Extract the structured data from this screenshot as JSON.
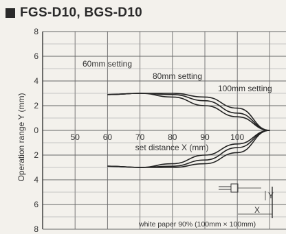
{
  "title": "FGS-D10, BGS-D10",
  "chart_data": {
    "type": "line",
    "title": "FGS-D10, BGS-D10",
    "xlabel": "set distance X (mm)",
    "ylabel": "Operation range Y (mm)",
    "xlim": [
      40,
      115
    ],
    "ylim": [
      -8,
      8
    ],
    "x_ticks": [
      "50",
      "60",
      "70",
      "80",
      "90",
      "100"
    ],
    "y_ticks": [
      "8",
      "6",
      "4",
      "2",
      "0",
      "2",
      "4",
      "6",
      "8"
    ],
    "grid": true,
    "series": [
      {
        "name": "60mm setting",
        "x": [
          60,
          70,
          80,
          90,
          100,
          110
        ],
        "y": [
          2.9,
          3.0,
          2.7,
          2.0,
          1.1,
          0
        ]
      },
      {
        "name": "80mm setting",
        "x": [
          60,
          70,
          80,
          90,
          100,
          110
        ],
        "y": [
          2.9,
          3.0,
          2.9,
          2.4,
          1.4,
          0
        ]
      },
      {
        "name": "100mm setting",
        "x": [
          60,
          70,
          80,
          90,
          100,
          110
        ],
        "y": [
          2.9,
          3.0,
          3.0,
          2.7,
          1.8,
          0
        ]
      }
    ],
    "annotations": {
      "footnote": "white paper 90% (100mm × 100mm)",
      "inset_x": "X",
      "inset_y": "Y"
    }
  }
}
